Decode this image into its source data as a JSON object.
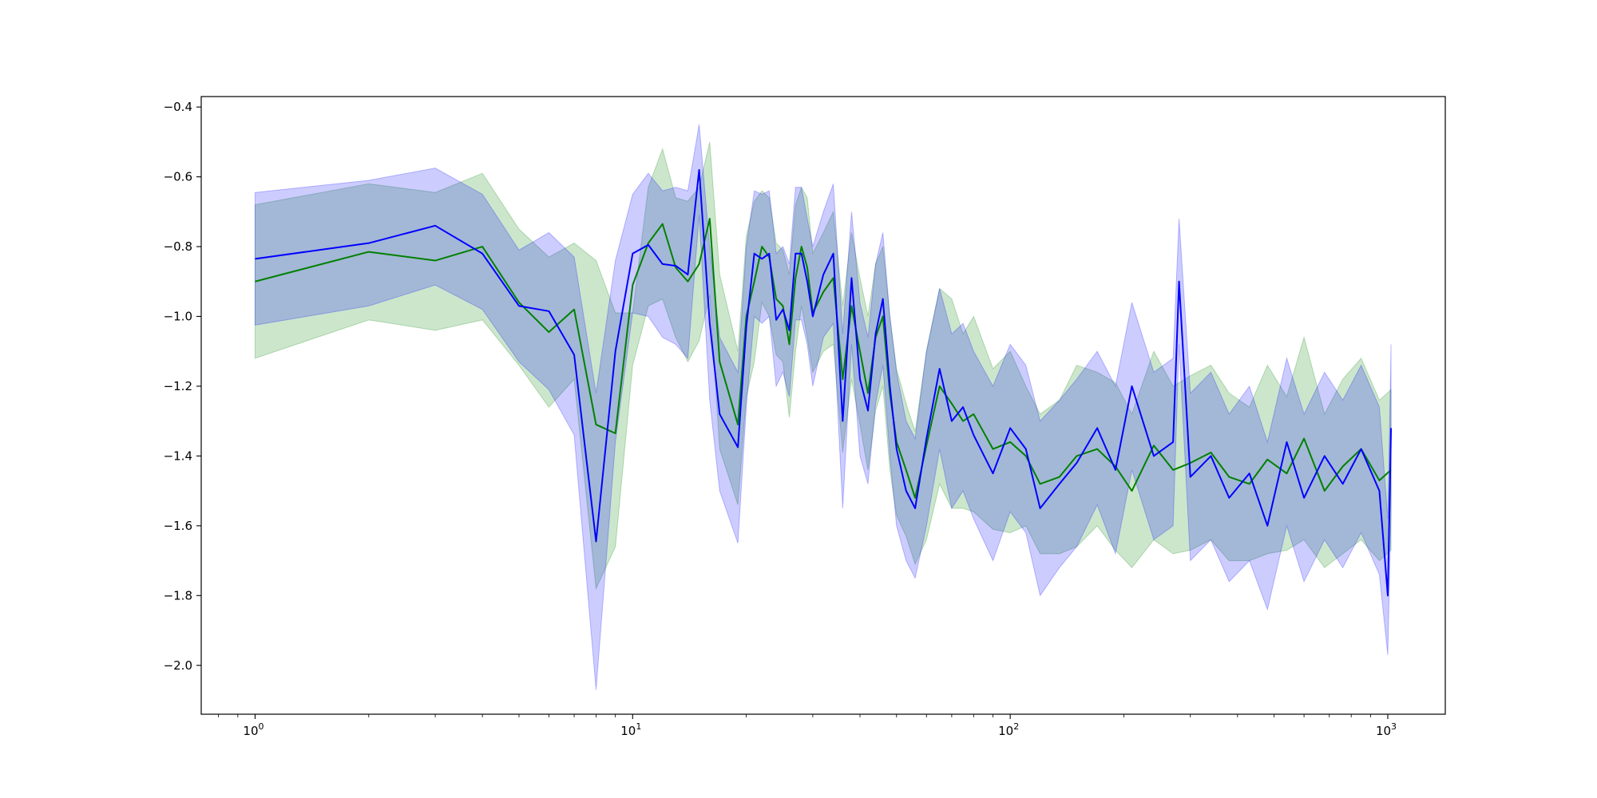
{
  "chart_data": {
    "type": "line",
    "title": "",
    "xlabel": "",
    "ylabel": "",
    "x_scale": "log",
    "xlim": [
      0.72,
      1420
    ],
    "ylim": [
      -2.14,
      -0.37
    ],
    "grid": false,
    "legend": "none",
    "x_ticks": [
      {
        "value": 1,
        "base": "10",
        "exp": "0"
      },
      {
        "value": 10,
        "base": "10",
        "exp": "1"
      },
      {
        "value": 100,
        "base": "10",
        "exp": "2"
      },
      {
        "value": 1000,
        "base": "10",
        "exp": "3"
      }
    ],
    "y_ticks": [
      {
        "value": -0.4,
        "label": "−0.4"
      },
      {
        "value": -0.6,
        "label": "−0.6"
      },
      {
        "value": -0.8,
        "label": "−0.8"
      },
      {
        "value": -1.0,
        "label": "−1.0"
      },
      {
        "value": -1.2,
        "label": "−1.2"
      },
      {
        "value": -1.4,
        "label": "−1.4"
      },
      {
        "value": -1.6,
        "label": "−1.6"
      },
      {
        "value": -1.8,
        "label": "−1.8"
      },
      {
        "value": -2.0,
        "label": "−2.0"
      }
    ],
    "series": [
      {
        "color": "#008000",
        "band_color": "#008000",
        "band_opacity": 0.2,
        "x": [
          1,
          2,
          3,
          4,
          5,
          6,
          7,
          8,
          9,
          10,
          11,
          12,
          13,
          14,
          15,
          16,
          17,
          19,
          20,
          21,
          22,
          23,
          24,
          25,
          26,
          27,
          28,
          29,
          30,
          32,
          34,
          36,
          38,
          40,
          42,
          44,
          46,
          48,
          50,
          53,
          56,
          60,
          65,
          70,
          75,
          80,
          90,
          100,
          110,
          120,
          135,
          150,
          170,
          190,
          210,
          240,
          270,
          300,
          340,
          380,
          430,
          480,
          540,
          600,
          680,
          760,
          850,
          950,
          1020
        ],
        "y": [
          -0.9,
          -0.815,
          -0.84,
          -0.8,
          -0.96,
          -1.045,
          -0.98,
          -1.31,
          -1.335,
          -0.91,
          -0.79,
          -0.735,
          -0.86,
          -0.9,
          -0.85,
          -0.72,
          -1.13,
          -1.31,
          -1.0,
          -0.9,
          -0.8,
          -0.83,
          -0.95,
          -0.97,
          -1.08,
          -0.89,
          -0.8,
          -0.86,
          -0.99,
          -0.93,
          -0.89,
          -1.18,
          -0.97,
          -1.1,
          -1.22,
          -1.06,
          -1.0,
          -1.22,
          -1.36,
          -1.44,
          -1.52,
          -1.37,
          -1.2,
          -1.25,
          -1.3,
          -1.28,
          -1.38,
          -1.36,
          -1.4,
          -1.48,
          -1.46,
          -1.4,
          -1.38,
          -1.43,
          -1.5,
          -1.37,
          -1.44,
          -1.42,
          -1.39,
          -1.46,
          -1.48,
          -1.41,
          -1.45,
          -1.35,
          -1.5,
          -1.43,
          -1.38,
          -1.47,
          -1.44
        ],
        "upper": [
          -0.68,
          -0.62,
          -0.645,
          -0.59,
          -0.75,
          -0.83,
          -0.79,
          -0.84,
          -0.99,
          -0.99,
          -0.63,
          -0.52,
          -0.66,
          -0.67,
          -0.63,
          -0.5,
          -0.88,
          -1.1,
          -0.77,
          -0.67,
          -0.64,
          -0.66,
          -0.79,
          -0.81,
          -0.88,
          -0.68,
          -0.63,
          -0.66,
          -0.82,
          -0.76,
          -0.7,
          -0.97,
          -0.76,
          -0.89,
          -1.0,
          -0.85,
          -0.8,
          -1.0,
          -1.15,
          -1.25,
          -1.33,
          -1.1,
          -0.92,
          -0.95,
          -1.05,
          -1.0,
          -1.15,
          -1.1,
          -1.2,
          -1.28,
          -1.24,
          -1.14,
          -1.16,
          -1.19,
          -1.28,
          -1.1,
          -1.2,
          -1.17,
          -1.14,
          -1.22,
          -1.26,
          -1.14,
          -1.23,
          -1.06,
          -1.28,
          -1.18,
          -1.12,
          -1.24,
          -1.21
        ],
        "lower": [
          -1.12,
          -1.01,
          -1.04,
          -1.01,
          -1.14,
          -1.26,
          -1.18,
          -1.78,
          -1.66,
          -1.14,
          -0.97,
          -0.95,
          -1.06,
          -1.13,
          -1.07,
          -0.94,
          -1.38,
          -1.54,
          -1.23,
          -1.13,
          -0.96,
          -1.0,
          -1.11,
          -1.13,
          -1.29,
          -1.1,
          -0.97,
          -1.06,
          -1.16,
          -1.1,
          -1.08,
          -1.39,
          -1.18,
          -1.31,
          -1.44,
          -1.27,
          -1.2,
          -1.44,
          -1.57,
          -1.63,
          -1.71,
          -1.64,
          -1.48,
          -1.55,
          -1.55,
          -1.56,
          -1.61,
          -1.62,
          -1.6,
          -1.68,
          -1.68,
          -1.66,
          -1.6,
          -1.67,
          -1.72,
          -1.64,
          -1.68,
          -1.67,
          -1.64,
          -1.7,
          -1.7,
          -1.68,
          -1.67,
          -1.64,
          -1.72,
          -1.68,
          -1.64,
          -1.7,
          -1.67
        ]
      },
      {
        "color": "#0000ff",
        "band_color": "#0000ff",
        "band_opacity": 0.2,
        "x": [
          1,
          2,
          3,
          4,
          5,
          6,
          7,
          8,
          9,
          10,
          11,
          12,
          13,
          14,
          15,
          16,
          17,
          19,
          20,
          21,
          22,
          23,
          24,
          25,
          26,
          27,
          28,
          29,
          30,
          32,
          34,
          36,
          38,
          40,
          42,
          44,
          46,
          48,
          50,
          53,
          56,
          60,
          65,
          70,
          75,
          80,
          90,
          100,
          110,
          120,
          135,
          150,
          170,
          190,
          210,
          240,
          270,
          280,
          300,
          340,
          380,
          430,
          480,
          540,
          600,
          680,
          760,
          850,
          950,
          1000,
          1020
        ],
        "y": [
          -0.835,
          -0.79,
          -0.74,
          -0.82,
          -0.97,
          -0.985,
          -1.11,
          -1.645,
          -1.1,
          -0.82,
          -0.795,
          -0.85,
          -0.855,
          -0.88,
          -0.58,
          -1.02,
          -1.28,
          -1.375,
          -1.03,
          -0.82,
          -0.835,
          -0.82,
          -1.01,
          -0.98,
          -1.04,
          -0.82,
          -0.82,
          -0.9,
          -1.0,
          -0.88,
          -0.82,
          -1.3,
          -0.89,
          -1.18,
          -1.27,
          -1.05,
          -0.95,
          -1.2,
          -1.38,
          -1.5,
          -1.55,
          -1.35,
          -1.15,
          -1.3,
          -1.26,
          -1.34,
          -1.45,
          -1.32,
          -1.38,
          -1.55,
          -1.48,
          -1.42,
          -1.32,
          -1.44,
          -1.2,
          -1.4,
          -1.36,
          -0.9,
          -1.46,
          -1.4,
          -1.52,
          -1.45,
          -1.6,
          -1.36,
          -1.52,
          -1.4,
          -1.48,
          -1.38,
          -1.5,
          -1.8,
          -1.32
        ],
        "upper": [
          -0.645,
          -0.61,
          -0.575,
          -0.65,
          -0.81,
          -0.76,
          -0.83,
          -1.22,
          -0.84,
          -0.65,
          -0.59,
          -0.64,
          -0.63,
          -0.64,
          -0.45,
          -0.8,
          -1.06,
          -1.16,
          -0.8,
          -0.64,
          -0.65,
          -0.64,
          -0.82,
          -0.8,
          -0.85,
          -0.63,
          -0.63,
          -0.72,
          -0.8,
          -0.7,
          -0.62,
          -1.05,
          -0.7,
          -0.96,
          -1.06,
          -0.85,
          -0.76,
          -1.0,
          -1.16,
          -1.3,
          -1.35,
          -1.1,
          -0.92,
          -1.05,
          -1.02,
          -1.1,
          -1.2,
          -1.08,
          -1.14,
          -1.3,
          -1.24,
          -1.18,
          -1.1,
          -1.2,
          -0.96,
          -1.16,
          -1.12,
          -0.72,
          -1.22,
          -1.16,
          -1.28,
          -1.2,
          -1.36,
          -1.12,
          -1.28,
          -1.16,
          -1.24,
          -1.14,
          -1.26,
          -1.58,
          -1.08
        ],
        "lower": [
          -1.025,
          -0.97,
          -0.91,
          -0.98,
          -1.13,
          -1.21,
          -1.34,
          -2.07,
          -1.36,
          -0.99,
          -1.0,
          -1.06,
          -1.08,
          -1.12,
          -0.71,
          -1.24,
          -1.5,
          -1.65,
          -1.26,
          -1.0,
          -1.02,
          -1.0,
          -1.2,
          -1.16,
          -1.23,
          -1.01,
          -1.01,
          -1.08,
          -1.2,
          -1.06,
          -1.02,
          -1.55,
          -1.08,
          -1.4,
          -1.48,
          -1.25,
          -1.14,
          -1.4,
          -1.6,
          -1.7,
          -1.75,
          -1.6,
          -1.38,
          -1.55,
          -1.5,
          -1.58,
          -1.7,
          -1.56,
          -1.62,
          -1.8,
          -1.72,
          -1.66,
          -1.54,
          -1.68,
          -1.44,
          -1.64,
          -1.6,
          -1.08,
          -1.7,
          -1.64,
          -1.76,
          -1.7,
          -1.84,
          -1.6,
          -1.76,
          -1.64,
          -1.72,
          -1.62,
          -1.74,
          -1.97,
          -1.56
        ]
      }
    ]
  }
}
